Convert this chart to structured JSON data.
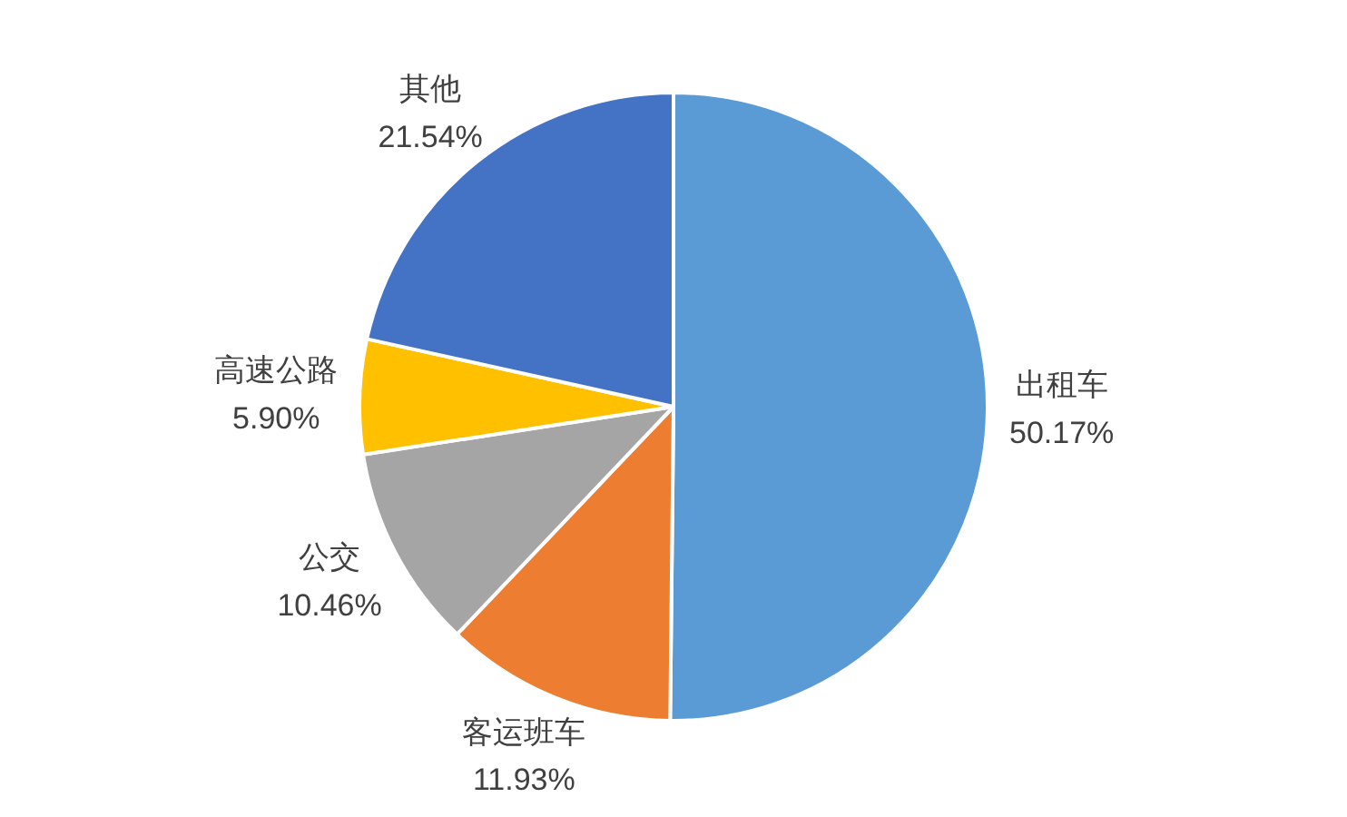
{
  "chart_data": {
    "type": "pie",
    "categories": [
      "出租车",
      "客运班车",
      "公交",
      "高速公路",
      "其他"
    ],
    "values": [
      50.17,
      11.93,
      10.46,
      5.9,
      21.54
    ],
    "value_labels": [
      "50.17%",
      "11.93%",
      "10.46%",
      "5.90%",
      "21.54%"
    ],
    "colors": [
      "#5b9bd5",
      "#ed7d31",
      "#a5a5a5",
      "#ffc000",
      "#4472c4"
    ]
  }
}
